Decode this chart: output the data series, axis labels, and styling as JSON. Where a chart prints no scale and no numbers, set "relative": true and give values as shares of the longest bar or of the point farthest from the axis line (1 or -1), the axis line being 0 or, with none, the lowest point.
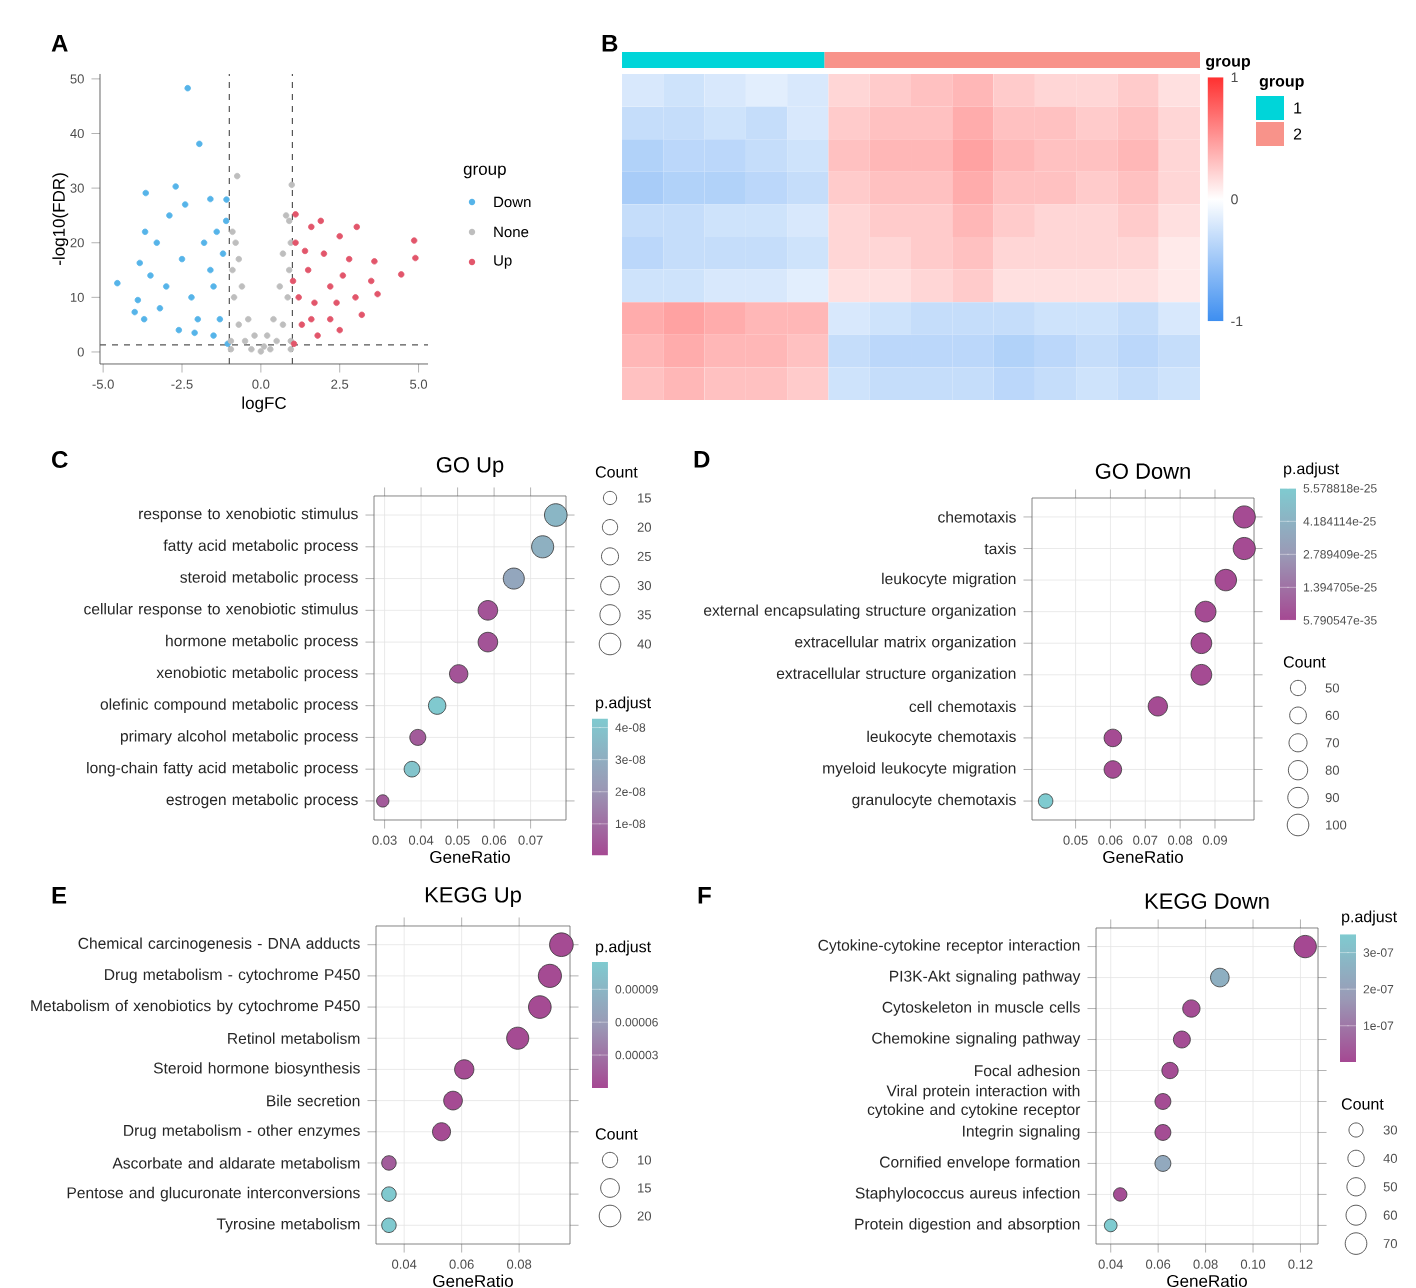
{
  "chart_data": [
    {
      "type": "scatter",
      "xlabel": "logFC",
      "ylabel": "-log10(FDR)",
      "legend_title": "group",
      "legend": "right",
      "marker": "circle",
      "xlim": [
        -5.1,
        5.3
      ],
      "ylim": [
        -2.2,
        50.9
      ],
      "xticks": [
        {
          "value": -5,
          "label": "-5.0"
        },
        {
          "value": -2.5,
          "label": "-2.5"
        },
        {
          "value": 0,
          "label": "0.0"
        },
        {
          "value": 2.5,
          "label": "2.5"
        },
        {
          "value": 5,
          "label": "5.0"
        }
      ],
      "yticks": [
        0,
        10,
        20,
        30,
        40,
        50
      ],
      "ref_lines": [
        {
          "axis": "x",
          "value": -1,
          "line_style": "dashed",
          "color": "#555555"
        },
        {
          "axis": "x",
          "value": 1,
          "line_style": "dashed",
          "color": "#555555"
        },
        {
          "axis": "y",
          "value": 1.3,
          "line_style": "dashed",
          "color": "#555555"
        }
      ],
      "series": [
        {
          "name": "Down",
          "color": "#56b4e9",
          "x": [
            -2.32,
            -1.95,
            -2.7,
            -3.65,
            -4.55,
            -4.0,
            -3.9,
            -3.7,
            -3.84,
            -3.67,
            -3.3,
            -2.4,
            -1.6,
            -1.09,
            -2.6,
            -1.5,
            -1.05,
            -3.0,
            -2.2,
            -1.5,
            -1.2,
            -1.8,
            -2.9,
            -3.5,
            -1.3,
            -2.0,
            -1.1,
            -2.5,
            -3.2,
            -1.6,
            -1.4,
            -2.1
          ],
          "values": [
            48.3,
            38.1,
            30.3,
            29.1,
            12.6,
            7.3,
            9.5,
            6.0,
            16.3,
            22.0,
            20.0,
            27.0,
            28.0,
            27.9,
            4.0,
            3.0,
            1.5,
            12.0,
            10.0,
            12.0,
            18.0,
            20.0,
            25.0,
            14.0,
            6.0,
            6.0,
            24.0,
            17.0,
            8.0,
            15.0,
            22.0,
            3.5
          ]
        },
        {
          "name": "None",
          "color": "#bebebe",
          "x": [
            -0.75,
            0.98,
            -0.9,
            -0.8,
            -0.9,
            -0.85,
            -0.7,
            -0.5,
            -0.3,
            0.0,
            0.3,
            0.5,
            0.7,
            0.85,
            0.9,
            0.95,
            0.9,
            0.6,
            -0.6,
            -0.4,
            0.4,
            -0.95,
            0.95,
            0.2,
            -0.2,
            0.8,
            -0.95,
            0.95,
            0.1,
            0.7,
            -0.7
          ],
          "values": [
            32.2,
            30.6,
            22.0,
            20.0,
            15.0,
            10.0,
            5.0,
            2.0,
            0.5,
            0.1,
            0.5,
            2.0,
            5.0,
            10.0,
            15.0,
            20.0,
            24.0,
            12.0,
            12.0,
            6.0,
            6.0,
            2.0,
            2.0,
            3.0,
            3.0,
            25.0,
            0.5,
            0.5,
            1.0,
            18.0,
            17.0
          ]
        },
        {
          "name": "Up",
          "color": "#e2566b",
          "x": [
            4.86,
            4.9,
            4.45,
            3.6,
            3.04,
            2.5,
            1.1,
            1.6,
            3.7,
            3.0,
            2.6,
            2.0,
            1.5,
            1.2,
            1.3,
            1.05,
            1.8,
            2.2,
            2.5,
            1.7,
            2.2,
            3.2,
            1.1,
            2.8,
            3.5,
            1.4,
            1.9,
            1.02,
            2.4,
            1.6
          ],
          "values": [
            20.4,
            17.2,
            14.2,
            16.6,
            22.9,
            21.2,
            25.2,
            22.9,
            10.6,
            10.0,
            14.0,
            18.0,
            15.0,
            10.0,
            5.0,
            1.5,
            3.0,
            6.0,
            4.0,
            9.0,
            12.0,
            6.8,
            20.0,
            17.0,
            13.0,
            18.5,
            24.0,
            13.0,
            9.0,
            6.0
          ]
        }
      ],
      "annotations": [
        "A"
      ]
    },
    {
      "type": "bar",
      "orientation": "horizontal",
      "stacked": true,
      "relative": true,
      "categories": [
        null
      ],
      "legend": "right",
      "legend_title": "group",
      "series": [
        {
          "name": "1",
          "color": "#00d5d9",
          "values": [
            0.35
          ]
        },
        {
          "name": "2",
          "color": "#f8938a",
          "values": [
            0.65
          ]
        }
      ],
      "annotations": [
        "B"
      ]
    },
    {
      "type": "heatmap",
      "categories": [
        null,
        null,
        null,
        null,
        null,
        null,
        null,
        null,
        null,
        null,
        null,
        null,
        null,
        null
      ],
      "y_categories": [
        null,
        null,
        null,
        null,
        null,
        null,
        null,
        null,
        null,
        null
      ],
      "clim": [
        -1,
        1
      ],
      "cticks": [
        -1,
        0,
        1
      ],
      "clabel": "group",
      "cells": [
        [
          -0.2,
          -0.25,
          -0.2,
          -0.15,
          -0.2,
          0.2,
          0.25,
          0.3,
          0.35,
          0.25,
          0.2,
          0.2,
          0.25,
          0.15
        ],
        [
          -0.3,
          -0.3,
          -0.25,
          -0.3,
          -0.2,
          0.25,
          0.3,
          0.3,
          0.4,
          0.3,
          0.3,
          0.25,
          0.3,
          0.2
        ],
        [
          -0.4,
          -0.35,
          -0.35,
          -0.3,
          -0.25,
          0.3,
          0.35,
          0.35,
          0.45,
          0.35,
          0.3,
          0.3,
          0.35,
          0.2
        ],
        [
          -0.45,
          -0.4,
          -0.4,
          -0.35,
          -0.3,
          0.25,
          0.3,
          0.3,
          0.4,
          0.3,
          0.3,
          0.25,
          0.3,
          0.2
        ],
        [
          -0.3,
          -0.3,
          -0.25,
          -0.25,
          -0.2,
          0.2,
          0.25,
          0.25,
          0.35,
          0.25,
          0.2,
          0.2,
          0.25,
          0.15
        ],
        [
          -0.35,
          -0.3,
          -0.3,
          -0.3,
          -0.25,
          0.2,
          0.2,
          0.25,
          0.3,
          0.2,
          0.2,
          0.2,
          0.2,
          0.1
        ],
        [
          -0.25,
          -0.25,
          -0.2,
          -0.2,
          -0.15,
          0.15,
          0.15,
          0.2,
          0.25,
          0.15,
          0.15,
          0.15,
          0.15,
          0.1
        ],
        [
          0.4,
          0.45,
          0.4,
          0.35,
          0.35,
          -0.2,
          -0.25,
          -0.3,
          -0.3,
          -0.3,
          -0.25,
          -0.25,
          -0.3,
          -0.2
        ],
        [
          0.35,
          0.4,
          0.35,
          0.35,
          0.3,
          -0.3,
          -0.35,
          -0.35,
          -0.35,
          -0.4,
          -0.35,
          -0.3,
          -0.35,
          -0.3
        ],
        [
          0.3,
          0.35,
          0.3,
          0.3,
          0.25,
          -0.25,
          -0.3,
          -0.3,
          -0.3,
          -0.35,
          -0.3,
          -0.25,
          -0.3,
          -0.25
        ]
      ]
    },
    {
      "type": "scatter",
      "orientation": "horizontal",
      "title": "GO Up",
      "xlabel": "GeneRatio",
      "marker": "circle",
      "grid": true,
      "legend_title": "Count",
      "clabel": "p.adjust",
      "categories": [
        "response to xenobiotic stimulus",
        "fatty acid metabolic process",
        "steroid metabolic process",
        "cellular response to xenobiotic stimulus",
        "hormone metabolic process",
        "xenobiotic metabolic process",
        "olefinic compound metabolic process",
        "primary alcohol metabolic process",
        "long-chain fatty acid metabolic process",
        "estrogen metabolic process"
      ],
      "values": [
        0.0769,
        0.0733,
        0.0654,
        0.0583,
        0.0583,
        0.0503,
        0.0444,
        0.0391,
        0.0375,
        0.0295
      ],
      "sizes": [
        44,
        42,
        38,
        33,
        33,
        29,
        26,
        22,
        21,
        13
      ],
      "cvalues": [
        3.4e-08,
        3.1e-08,
        2.7e-08,
        3e-09,
        3e-09,
        3e-09,
        4.2e-08,
        5e-09,
        4e-08,
        5e-09
      ],
      "size_legend": [
        15,
        20,
        25,
        30,
        35,
        40
      ],
      "clim": [
        0,
        4.3e-08
      ],
      "cticks": [
        {
          "value": 1e-08,
          "label": "1e-08"
        },
        {
          "value": 2e-08,
          "label": "2e-08"
        },
        {
          "value": 3e-08,
          "label": "3e-08"
        },
        {
          "value": 4e-08,
          "label": "4e-08"
        }
      ],
      "xlim": [
        0.0271,
        0.0797
      ],
      "xticks": [
        0.03,
        0.04,
        0.05,
        0.06,
        0.07
      ],
      "annotations": [
        "C"
      ]
    },
    {
      "type": "scatter",
      "orientation": "horizontal",
      "title": "GO Down",
      "xlabel": "GeneRatio",
      "marker": "circle",
      "grid": true,
      "legend_title": "Count",
      "clabel": "p.adjust",
      "categories": [
        "chemotaxis",
        "taxis",
        "leukocyte migration",
        "external encapsulating structure organization",
        "extracellular matrix organization",
        "extracellular structure organization",
        "cell chemotaxis",
        "leukocyte chemotaxis",
        "myeloid leukocyte migration",
        "granulocyte chemotaxis"
      ],
      "values": [
        0.0984,
        0.0984,
        0.0931,
        0.0873,
        0.0861,
        0.0861,
        0.0736,
        0.0607,
        0.0607,
        0.0414
      ],
      "sizes": [
        105,
        105,
        99,
        93,
        92,
        92,
        80,
        66,
        66,
        45
      ],
      "cvalues": [
        1e-26,
        1e-26,
        1e-26,
        1e-26,
        1e-26,
        1e-26,
        1e-26,
        1e-26,
        1e-26,
        5.578818e-25
      ],
      "size_legend": [
        50,
        60,
        70,
        80,
        90,
        100
      ],
      "clim": [
        5.790547e-35,
        5.578818e-25
      ],
      "cticks": [
        {
          "value": 5.790547e-35,
          "label": "5.790547e-35"
        },
        {
          "value": 1.394705e-25,
          "label": "1.394705e-25"
        },
        {
          "value": 2.789409e-25,
          "label": "2.789409e-25"
        },
        {
          "value": 4.184114e-25,
          "label": "4.184114e-25"
        },
        {
          "value": 5.578818e-25,
          "label": "5.578818e-25"
        }
      ],
      "xlim": [
        0.0375,
        0.1012
      ],
      "xticks": [
        0.05,
        0.06,
        0.07,
        0.08,
        0.09
      ],
      "annotations": [
        "D"
      ]
    },
    {
      "type": "scatter",
      "orientation": "horizontal",
      "title": "KEGG Up",
      "xlabel": "GeneRatio",
      "marker": "circle",
      "grid": true,
      "legend_title": "Count",
      "clabel": "p.adjust",
      "categories": [
        "Chemical carcinogenesis - DNA adducts",
        "Drug metabolism - cytochrome P450",
        "Metabolism of xenobiotics by cytochrome P450",
        "Retinol metabolism",
        "Steroid hormone biosynthesis",
        "Bile secretion",
        "Drug metabolism - other enzymes",
        "Ascorbate and aldarate metabolism",
        "Pentose and glucuronate interconversions",
        "Tyrosine metabolism"
      ],
      "values": [
        0.0947,
        0.0907,
        0.0872,
        0.0795,
        0.0609,
        0.057,
        0.053,
        0.0347,
        0.0347,
        0.0347
      ],
      "sizes": [
        24,
        23,
        22,
        21,
        16,
        15,
        14,
        9,
        9,
        9
      ],
      "cvalues": [
        2e-06,
        2e-06,
        2e-06,
        2e-06,
        2e-06,
        2e-06,
        2e-06,
        1.5e-05,
        0.000113,
        0.000113
      ],
      "size_legend": [
        10,
        15,
        20
      ],
      "clim": [
        0,
        0.000115
      ],
      "cticks": [
        {
          "value": 3e-05,
          "label": "0.00003"
        },
        {
          "value": 6e-05,
          "label": "0.00006"
        },
        {
          "value": 9e-05,
          "label": "0.00009"
        }
      ],
      "xlim": [
        0.0302,
        0.0977
      ],
      "xticks": [
        0.04,
        0.06,
        0.08
      ],
      "annotations": [
        "E"
      ]
    },
    {
      "type": "scatter",
      "orientation": "horizontal",
      "title": "KEGG Down",
      "xlabel": "GeneRatio",
      "marker": "circle",
      "grid": true,
      "legend_title": "Count",
      "clabel": "p.adjust",
      "categories": [
        "Cytokine-cytokine receptor interaction",
        "PI3K-Akt signaling pathway",
        "Cytoskeleton in muscle cells",
        "Chemokine signaling pathway",
        "Focal adhesion",
        "Viral protein interaction with cytokine and cytokine receptor",
        "Integrin signaling",
        "Cornified envelope formation",
        "Staphylococcus aureus infection",
        "Protein digestion and absorption"
      ],
      "values": [
        0.122,
        0.086,
        0.074,
        0.07,
        0.065,
        0.062,
        0.062,
        0.062,
        0.044,
        0.04
      ],
      "sizes": [
        75,
        52,
        45,
        43,
        40,
        38,
        38,
        38,
        27,
        24
      ],
      "cvalues": [
        1e-09,
        2.5e-07,
        1e-08,
        1e-08,
        1e-08,
        1e-08,
        1e-08,
        2.3e-07,
        1e-08,
        3.5e-07
      ],
      "size_legend": [
        30,
        40,
        50,
        60,
        70
      ],
      "clim": [
        0,
        3.5e-07
      ],
      "cticks": [
        {
          "value": 1e-07,
          "label": "1e-07"
        },
        {
          "value": 2e-07,
          "label": "2e-07"
        },
        {
          "value": 3e-07,
          "label": "3e-07"
        }
      ],
      "xlim": [
        0.0338,
        0.1274
      ],
      "xticks": [
        0.04,
        0.06,
        0.08,
        {
          "value": 0.1,
          "label": "0.10"
        },
        0.12
      ],
      "annotations": [
        "F"
      ]
    }
  ]
}
